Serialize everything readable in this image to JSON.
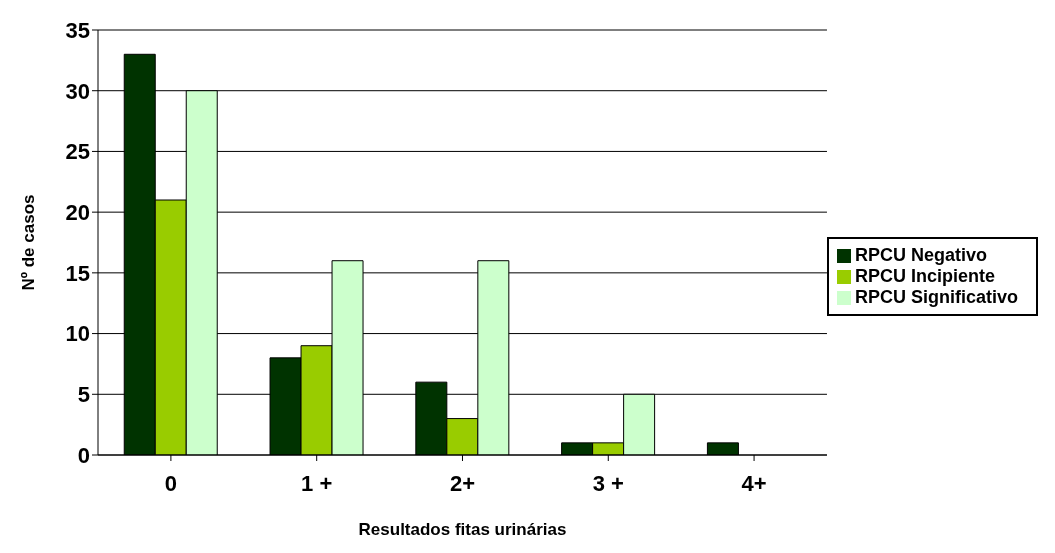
{
  "chart_data": {
    "type": "bar",
    "xlabel": "Resultados fitas urinárias",
    "ylabel": "Nº de casos",
    "categories": [
      "0",
      "1 +",
      "2+",
      "3 +",
      "4+"
    ],
    "series": [
      {
        "name": "RPCU Negativo",
        "color": "#003300",
        "values": [
          33,
          8,
          6,
          1,
          1
        ]
      },
      {
        "name": "RPCU Incipiente",
        "color": "#99cc00",
        "values": [
          21,
          9,
          3,
          1,
          0
        ]
      },
      {
        "name": "RPCU Significativo",
        "color": "#ccffcc",
        "values": [
          30,
          16,
          16,
          5,
          0
        ]
      }
    ],
    "ylim": [
      0,
      35
    ],
    "yticks": [
      0,
      5,
      10,
      15,
      20,
      25,
      30,
      35
    ],
    "grid": "y",
    "legend": "right"
  }
}
